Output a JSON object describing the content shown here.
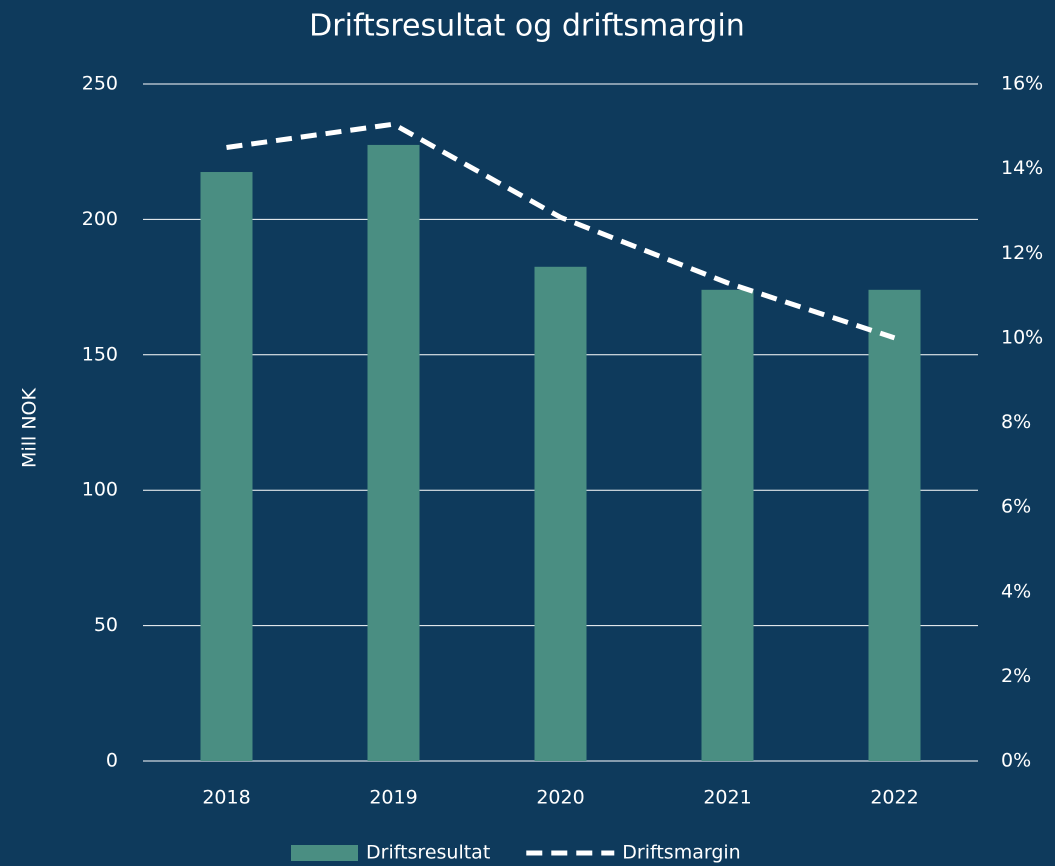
{
  "chart_data": {
    "type": "bar",
    "title": "Driftsresultat og driftsmargin",
    "ylabel": "Mill NOK",
    "categories": [
      "2018",
      "2019",
      "2020",
      "2021",
      "2022"
    ],
    "series": [
      {
        "name": "Driftsresultat",
        "type": "bar",
        "color": "#4a8e82",
        "axis": "y",
        "values": [
          217.5,
          227.5,
          182.5,
          174,
          174
        ]
      },
      {
        "name": "Driftsmargin",
        "type": "line",
        "color": "#ffffff",
        "dashed": true,
        "axis": "y2",
        "values": [
          14.5,
          15.05,
          12.85,
          11.3,
          10.0
        ]
      }
    ],
    "ylim": [
      0,
      250
    ],
    "yticks": [
      0,
      50,
      100,
      150,
      200,
      250
    ],
    "y2lim": [
      0,
      16
    ],
    "y2ticks": [
      {
        "value": 0,
        "label": "0%"
      },
      {
        "value": 2,
        "label": "2%"
      },
      {
        "value": 4,
        "label": "4%"
      },
      {
        "value": 6,
        "label": "6%"
      },
      {
        "value": 8,
        "label": "8%"
      },
      {
        "value": 10,
        "label": "10%"
      },
      {
        "value": 12,
        "label": "12%"
      },
      {
        "value": 14,
        "label": "14%"
      },
      {
        "value": 16,
        "label": "16%"
      }
    ],
    "grid": true,
    "legend": "bottom"
  }
}
